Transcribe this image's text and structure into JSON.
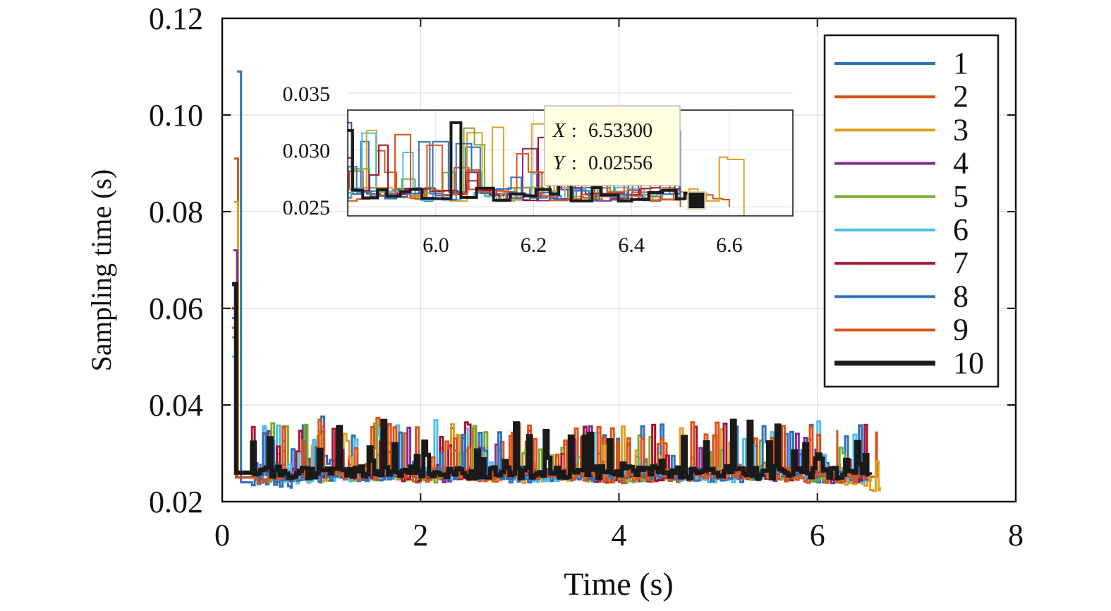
{
  "chart_data": {
    "type": "line",
    "title": "",
    "xlabel": "Time (s)",
    "ylabel": "Sampling time (s)",
    "xlim": [
      0,
      8
    ],
    "ylim": [
      0.02,
      0.12
    ],
    "xticks": [
      "0",
      "2",
      "4",
      "6",
      "8"
    ],
    "yticks": [
      "0.02",
      "0.04",
      "0.06",
      "0.08",
      "0.10",
      "0.12"
    ],
    "grid": true,
    "legend_position": "top-right",
    "series": [
      {
        "name": "1",
        "color": "#2e6fbb",
        "width": 3,
        "x": [
          0.15,
          0.3,
          0.7,
          1.0,
          2.0,
          3.0,
          4.0,
          5.0,
          6.0,
          6.5
        ],
        "y": [
          0.109,
          0.024,
          0.024,
          0.028,
          0.025,
          0.026,
          0.025,
          0.026,
          0.025,
          0.025
        ]
      },
      {
        "name": "2",
        "color": "#d95319",
        "width": 3,
        "x": [
          0.12,
          0.3,
          0.8,
          1.5,
          2.5,
          3.5,
          4.5,
          5.5,
          6.2,
          6.6
        ],
        "y": [
          0.091,
          0.026,
          0.025,
          0.027,
          0.025,
          0.026,
          0.025,
          0.027,
          0.025,
          0.025
        ]
      },
      {
        "name": "3",
        "color": "#e0a020",
        "width": 3,
        "x": [
          0.12,
          0.4,
          1.0,
          2.0,
          3.0,
          4.0,
          5.0,
          6.0,
          6.63
        ],
        "y": [
          0.082,
          0.026,
          0.025,
          0.026,
          0.025,
          0.026,
          0.025,
          0.026,
          0.023
        ]
      },
      {
        "name": "4",
        "color": "#7e2f8e",
        "width": 3,
        "x": [
          0.11,
          0.35,
          1.0,
          2.0,
          3.0,
          4.0,
          5.0,
          6.0,
          6.5
        ],
        "y": [
          0.072,
          0.025,
          0.026,
          0.025,
          0.026,
          0.025,
          0.026,
          0.025,
          0.025
        ]
      },
      {
        "name": "5",
        "color": "#77ac30",
        "width": 3,
        "x": [
          0.1,
          0.3,
          1.0,
          2.0,
          3.0,
          4.0,
          5.0,
          6.0,
          6.5
        ],
        "y": [
          0.054,
          0.025,
          0.026,
          0.025,
          0.026,
          0.025,
          0.026,
          0.025,
          0.025
        ]
      },
      {
        "name": "6",
        "color": "#4dbeee",
        "width": 3,
        "x": [
          0.1,
          0.3,
          1.0,
          2.0,
          3.0,
          4.0,
          5.0,
          6.0,
          6.5
        ],
        "y": [
          0.05,
          0.025,
          0.025,
          0.026,
          0.025,
          0.026,
          0.025,
          0.026,
          0.025
        ]
      },
      {
        "name": "7",
        "color": "#a2142f",
        "width": 3,
        "x": [
          0.1,
          0.3,
          1.0,
          2.0,
          3.0,
          4.0,
          5.0,
          6.0,
          6.5
        ],
        "y": [
          0.06,
          0.025,
          0.026,
          0.025,
          0.026,
          0.025,
          0.026,
          0.025,
          0.025
        ]
      },
      {
        "name": "8",
        "color": "#2e6fbb",
        "width": 3,
        "x": [
          0.1,
          0.3,
          1.0,
          2.0,
          3.0,
          4.0,
          5.0,
          6.0,
          6.5
        ],
        "y": [
          0.058,
          0.025,
          0.025,
          0.026,
          0.025,
          0.026,
          0.025,
          0.026,
          0.025
        ]
      },
      {
        "name": "9",
        "color": "#d95319",
        "width": 3,
        "x": [
          0.1,
          0.3,
          1.0,
          2.0,
          3.0,
          4.0,
          5.0,
          6.0,
          6.5
        ],
        "y": [
          0.056,
          0.025,
          0.026,
          0.025,
          0.026,
          0.025,
          0.026,
          0.025,
          0.025
        ]
      },
      {
        "name": "10",
        "color": "#1a1a1a",
        "width": 6,
        "x": [
          0.1,
          0.3,
          1.0,
          2.0,
          3.0,
          4.0,
          5.0,
          6.0,
          6.53
        ],
        "y": [
          0.065,
          0.026,
          0.026,
          0.026,
          0.026,
          0.026,
          0.026,
          0.026,
          0.02556
        ]
      }
    ],
    "inset": {
      "xlim": [
        5.82,
        6.73
      ],
      "ylim": [
        0.0242,
        0.0335
      ],
      "xticks": [
        "6.0",
        "6.2",
        "6.4",
        "6.6"
      ],
      "yticks": [
        "0.025",
        "0.030",
        "0.035"
      ],
      "datatip": {
        "x_label": "X",
        "x_value": "6.53300",
        "y_label": "Y",
        "y_value": "0.02556",
        "x": 6.533,
        "y": 0.02556
      }
    }
  }
}
